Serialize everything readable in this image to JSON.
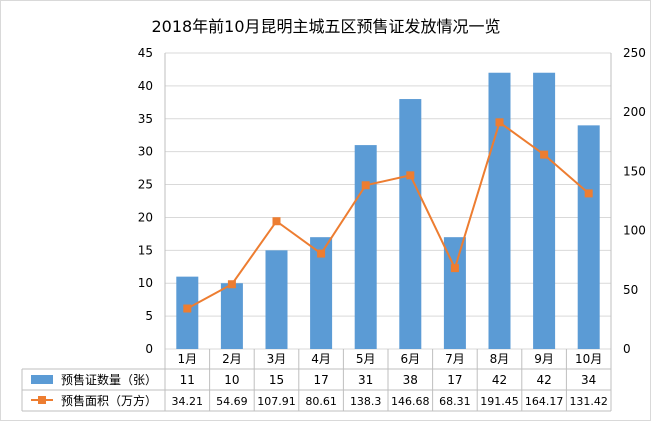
{
  "chart_data": {
    "type": "bar",
    "title": "2018年前10月昆明主城五区预售证发放情况一览",
    "categories": [
      "1月",
      "2月",
      "3月",
      "4月",
      "5月",
      "6月",
      "7月",
      "8月",
      "9月",
      "10月"
    ],
    "series": [
      {
        "name": "预售证数量（张）",
        "type": "bar",
        "axis": "left",
        "color": "#5b9bd5",
        "values": [
          11,
          10,
          15,
          17,
          31,
          38,
          17,
          42,
          42,
          34
        ],
        "labels": [
          "11",
          "10",
          "15",
          "17",
          "31",
          "38",
          "17",
          "42",
          "42",
          "34"
        ]
      },
      {
        "name": "预售面积（万方）",
        "type": "line",
        "axis": "right",
        "color": "#ed7d31",
        "values": [
          34.21,
          54.69,
          107.91,
          80.61,
          138.3,
          146.68,
          68.31,
          191.45,
          164.17,
          131.42
        ],
        "labels": [
          "34.21",
          "54.69",
          "107.91",
          "80.61",
          "138.3",
          "146.68",
          "68.31",
          "191.45",
          "164.17",
          "131.42"
        ]
      }
    ],
    "y_left": {
      "min": 0,
      "max": 45,
      "step": 5,
      "ticks": [
        "0",
        "5",
        "10",
        "15",
        "20",
        "25",
        "30",
        "35",
        "40",
        "45"
      ]
    },
    "y_right": {
      "min": 0,
      "max": 250,
      "step": 50,
      "ticks": [
        "0",
        "50",
        "100",
        "150",
        "200",
        "250"
      ]
    },
    "grid": true,
    "legend": "data-table"
  }
}
